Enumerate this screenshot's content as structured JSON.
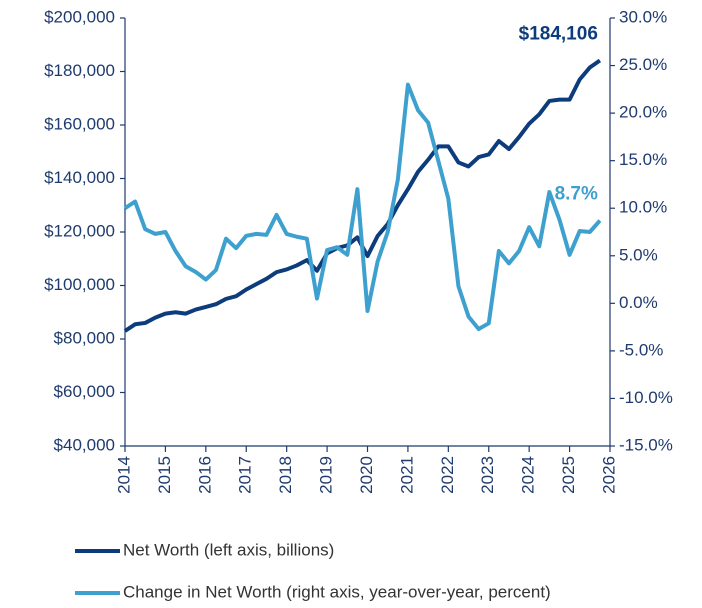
{
  "chart_data": {
    "type": "line",
    "x": [
      2014,
      2014.25,
      2014.5,
      2014.75,
      2015,
      2015.25,
      2015.5,
      2015.75,
      2016,
      2016.25,
      2016.5,
      2016.75,
      2017,
      2017.25,
      2017.5,
      2017.75,
      2018,
      2018.25,
      2018.5,
      2018.75,
      2019,
      2019.25,
      2019.5,
      2019.75,
      2020,
      2020.25,
      2020.5,
      2020.75,
      2021,
      2021.25,
      2021.5,
      2021.75,
      2022,
      2022.25,
      2022.5,
      2022.75,
      2023,
      2023.25,
      2023.5,
      2023.75,
      2024,
      2024.25,
      2024.5,
      2024.75,
      2025,
      2025.25,
      2025.5,
      2025.75
    ],
    "series": [
      {
        "name": "Net Worth (left axis, billions)",
        "color": "#0d3c7c",
        "axis": "y",
        "values": [
          83000,
          85500,
          86000,
          88000,
          89500,
          90000,
          89500,
          91000,
          92000,
          93000,
          95000,
          96000,
          98500,
          100500,
          102500,
          105000,
          106000,
          107500,
          109500,
          105500,
          112000,
          114000,
          115000,
          118000,
          111000,
          118500,
          123000,
          130000,
          136000,
          142500,
          147000,
          152000,
          152000,
          146000,
          144500,
          148000,
          149000,
          154000,
          151000,
          155500,
          160500,
          164000,
          169000,
          169500,
          169500,
          177000,
          181500,
          184106
        ],
        "value_labels": [
          null,
          null,
          null,
          null,
          null,
          null,
          null,
          null,
          null,
          null,
          null,
          null,
          null,
          null,
          null,
          null,
          null,
          null,
          null,
          null,
          null,
          null,
          null,
          null,
          null,
          null,
          null,
          null,
          null,
          null,
          null,
          null,
          null,
          null,
          null,
          null,
          null,
          null,
          null,
          null,
          null,
          null,
          null,
          null,
          null,
          null,
          null,
          "$184,106"
        ]
      },
      {
        "name": "Change in Net Worth (right axis, year-over-year, percent)",
        "color": "#3ea0cf",
        "axis": "y2",
        "values": [
          10,
          10.7,
          7.8,
          7.3,
          7.5,
          5.5,
          3.9,
          3.3,
          2.5,
          3.5,
          6.8,
          5.8,
          7.1,
          7.3,
          7.2,
          9.3,
          7.3,
          7.0,
          6.8,
          0.5,
          5.6,
          5.9,
          5.1,
          12.0,
          -0.8,
          4.4,
          7.5,
          13.0,
          23.0,
          20.3,
          19.0,
          15.0,
          11.0,
          1.8,
          -1.4,
          -2.7,
          -2.1,
          5.5,
          4.2,
          5.5,
          8.0,
          6.0,
          11.7,
          8.8,
          5.1,
          7.6,
          7.5,
          8.7
        ],
        "value_labels": [
          null,
          null,
          null,
          null,
          null,
          null,
          null,
          null,
          null,
          null,
          null,
          null,
          null,
          null,
          null,
          null,
          null,
          null,
          null,
          null,
          null,
          null,
          null,
          null,
          null,
          null,
          null,
          null,
          null,
          null,
          null,
          null,
          null,
          null,
          null,
          null,
          null,
          null,
          null,
          null,
          null,
          null,
          null,
          null,
          null,
          null,
          null,
          "8.7%"
        ]
      }
    ],
    "xlim": [
      2014,
      2026
    ],
    "xticks": [
      2014,
      2015,
      2016,
      2017,
      2018,
      2019,
      2020,
      2021,
      2022,
      2023,
      2024,
      2025,
      2026
    ],
    "ylim": [
      40000,
      200000
    ],
    "yticks": [
      {
        "value": 40000,
        "label": "$40,000"
      },
      {
        "value": 60000,
        "label": "$60,000"
      },
      {
        "value": 80000,
        "label": "$80,000"
      },
      {
        "value": 100000,
        "label": "$100,000"
      },
      {
        "value": 120000,
        "label": "$120,000"
      },
      {
        "value": 140000,
        "label": "$140,000"
      },
      {
        "value": 160000,
        "label": "$160,000"
      },
      {
        "value": 180000,
        "label": "$180,000"
      },
      {
        "value": 200000,
        "label": "$200,000"
      }
    ],
    "y2lim": [
      -15,
      30
    ],
    "y2ticks": [
      {
        "value": -15,
        "label": "-15.0%"
      },
      {
        "value": -10,
        "label": "-10.0%"
      },
      {
        "value": -5,
        "label": "-5.0%"
      },
      {
        "value": 0,
        "label": "0.0%"
      },
      {
        "value": 5,
        "label": "5.0%"
      },
      {
        "value": 10,
        "label": "10.0%"
      },
      {
        "value": 15,
        "label": "15.0%"
      },
      {
        "value": 20,
        "label": "20.0%"
      },
      {
        "value": 25,
        "label": "25.0%"
      },
      {
        "value": 30,
        "label": "30.0%"
      }
    ],
    "grid": false,
    "legend": "bottom"
  }
}
